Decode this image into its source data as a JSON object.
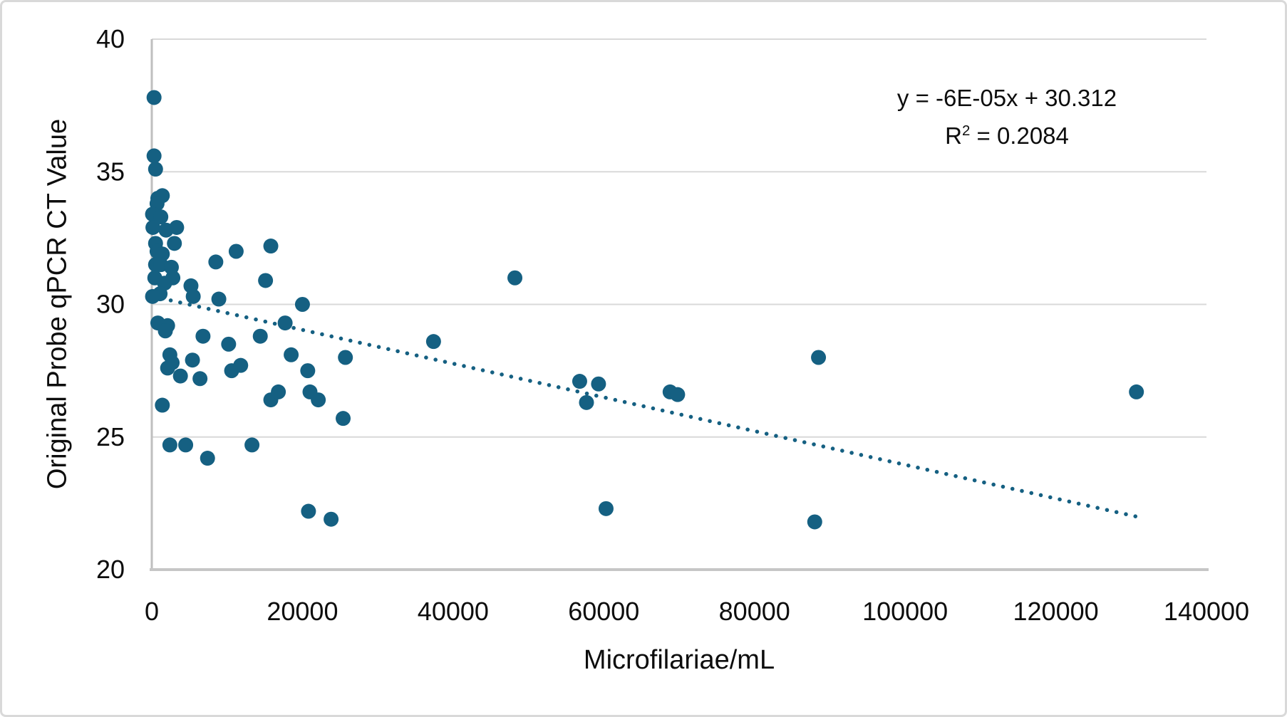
{
  "chart_data": {
    "type": "scatter",
    "xlabel": "Microfilariae/mL",
    "ylabel": "Original Probe qPCR CT Value",
    "xlim": [
      0,
      140000
    ],
    "ylim": [
      20,
      40
    ],
    "x_ticks": [
      0,
      20000,
      40000,
      60000,
      80000,
      100000,
      120000,
      140000
    ],
    "y_ticks": [
      20,
      25,
      30,
      35,
      40
    ],
    "grid": "horizontal-only",
    "legend": "none",
    "marker_color": "#156082",
    "gridline_color": "#d9d9d9",
    "axis_line_color": "#bfbfbf",
    "points": [
      [
        300,
        37.8
      ],
      [
        300,
        35.6
      ],
      [
        500,
        35.1
      ],
      [
        800,
        34.0
      ],
      [
        1400,
        34.1
      ],
      [
        700,
        33.8
      ],
      [
        100,
        33.4
      ],
      [
        1200,
        33.3
      ],
      [
        150,
        32.9
      ],
      [
        1900,
        32.8
      ],
      [
        3300,
        32.9
      ],
      [
        500,
        32.3
      ],
      [
        3000,
        32.3
      ],
      [
        700,
        32.0
      ],
      [
        1400,
        31.9
      ],
      [
        500,
        31.5
      ],
      [
        1200,
        31.5
      ],
      [
        2600,
        31.4
      ],
      [
        400,
        31.0
      ],
      [
        2800,
        31.0
      ],
      [
        1700,
        30.8
      ],
      [
        1100,
        30.4
      ],
      [
        100,
        30.3
      ],
      [
        800,
        29.3
      ],
      [
        2100,
        29.2
      ],
      [
        1800,
        29.0
      ],
      [
        2400,
        28.1
      ],
      [
        2100,
        27.6
      ],
      [
        2700,
        27.8
      ],
      [
        1400,
        26.2
      ],
      [
        2400,
        24.7
      ],
      [
        4500,
        24.7
      ],
      [
        7400,
        24.2
      ],
      [
        13300,
        24.7
      ],
      [
        3800,
        27.3
      ],
      [
        5400,
        27.9
      ],
      [
        6400,
        27.2
      ],
      [
        6800,
        28.8
      ],
      [
        5200,
        30.7
      ],
      [
        5500,
        30.3
      ],
      [
        8500,
        31.6
      ],
      [
        8900,
        30.2
      ],
      [
        10200,
        28.5
      ],
      [
        10600,
        27.5
      ],
      [
        11800,
        27.7
      ],
      [
        11200,
        32.0
      ],
      [
        14400,
        28.8
      ],
      [
        15100,
        30.9
      ],
      [
        15800,
        32.2
      ],
      [
        17700,
        29.3
      ],
      [
        18500,
        28.1
      ],
      [
        20000,
        30.0
      ],
      [
        20700,
        27.5
      ],
      [
        15800,
        26.4
      ],
      [
        16800,
        26.7
      ],
      [
        21000,
        26.7
      ],
      [
        22100,
        26.4
      ],
      [
        25700,
        28.0
      ],
      [
        25400,
        25.7
      ],
      [
        20800,
        22.2
      ],
      [
        23800,
        21.9
      ],
      [
        37400,
        28.6
      ],
      [
        48200,
        31.0
      ],
      [
        56800,
        27.1
      ],
      [
        59300,
        27.0
      ],
      [
        57700,
        26.3
      ],
      [
        60300,
        22.3
      ],
      [
        68800,
        26.7
      ],
      [
        69800,
        26.6
      ],
      [
        88500,
        28.0
      ],
      [
        88000,
        21.8
      ],
      [
        130700,
        26.7
      ]
    ],
    "trendline": {
      "style": "dotted",
      "x_start": 0,
      "y_start": 30.31,
      "x_end": 130700,
      "y_end": 22.0,
      "equation_label": "y = -6E-05x + 30.312",
      "r2_base": "R",
      "r2_sup": "2",
      "r2_rest": " = 0.2084"
    }
  }
}
